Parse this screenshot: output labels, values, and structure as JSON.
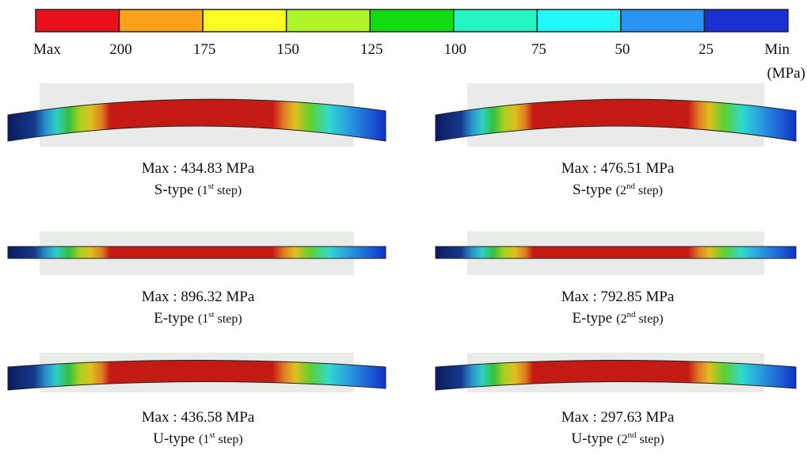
{
  "legend": {
    "colors": [
      "#e8101a",
      "#fca11a",
      "#fcfc22",
      "#aef52a",
      "#10dc10",
      "#22f5c2",
      "#22fafa",
      "#2a92f0",
      "#1a2fd0"
    ],
    "labels": [
      "Max",
      "200",
      "175",
      "150",
      "125",
      "100",
      "75",
      "50",
      "25",
      "Min"
    ],
    "unit": "(MPa)"
  },
  "panels": [
    {
      "max": "Max : 434.83 MPa",
      "type": "S-type",
      "step_pre": "(1",
      "step_sup": "st",
      "step_post": "step)"
    },
    {
      "max": "Max : 476.51 MPa",
      "type": "S-type",
      "step_pre": "(2",
      "step_sup": "nd",
      "step_post": "step)"
    },
    {
      "max": "Max : 896.32 MPa",
      "type": "E-type",
      "step_pre": "(1",
      "step_sup": "st",
      "step_post": "step)"
    },
    {
      "max": "Max : 792.85 MPa",
      "type": "E-type",
      "step_pre": "(2",
      "step_sup": "nd",
      "step_post": "step)"
    },
    {
      "max": "Max : 436.58 MPa",
      "type": "U-type",
      "step_pre": "(1",
      "step_sup": "st",
      "step_post": "step)"
    },
    {
      "max": "Max : 297.63 MPa",
      "type": "U-type",
      "step_pre": "(2",
      "step_sup": "nd",
      "step_post": "step)"
    }
  ]
}
